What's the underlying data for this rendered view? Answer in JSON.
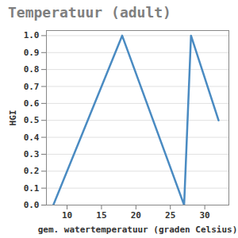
{
  "chart_data": {
    "type": "line",
    "title": "Temperatuur (adult)",
    "x_label": "gem. watertemperatuur (graden Celsius)",
    "y_label": "HGI",
    "x": [
      8,
      18,
      27,
      28,
      32
    ],
    "values": [
      0.0,
      1.0,
      0.0,
      1.0,
      0.5
    ],
    "color": "#4a8bc2",
    "xlim": [
      7,
      33.5
    ],
    "ylim": [
      0,
      1.03
    ],
    "xticks": [
      10,
      15,
      20,
      25,
      30
    ],
    "yticks": [
      {
        "value": 0,
        "label": "0.0"
      },
      {
        "value": 0.1,
        "label": "0.1"
      },
      {
        "value": 0.2,
        "label": "0.2"
      },
      {
        "value": 0.3,
        "label": "0.3"
      },
      {
        "value": 0.4,
        "label": "0.4"
      },
      {
        "value": 0.5,
        "label": "0.5"
      },
      {
        "value": 0.6,
        "label": "0.6"
      },
      {
        "value": 0.7,
        "label": "0.7"
      },
      {
        "value": 0.8,
        "label": "0.8"
      },
      {
        "value": 0.9,
        "label": "0.9"
      },
      {
        "value": 1,
        "label": "1.0"
      }
    ],
    "grid": true
  }
}
